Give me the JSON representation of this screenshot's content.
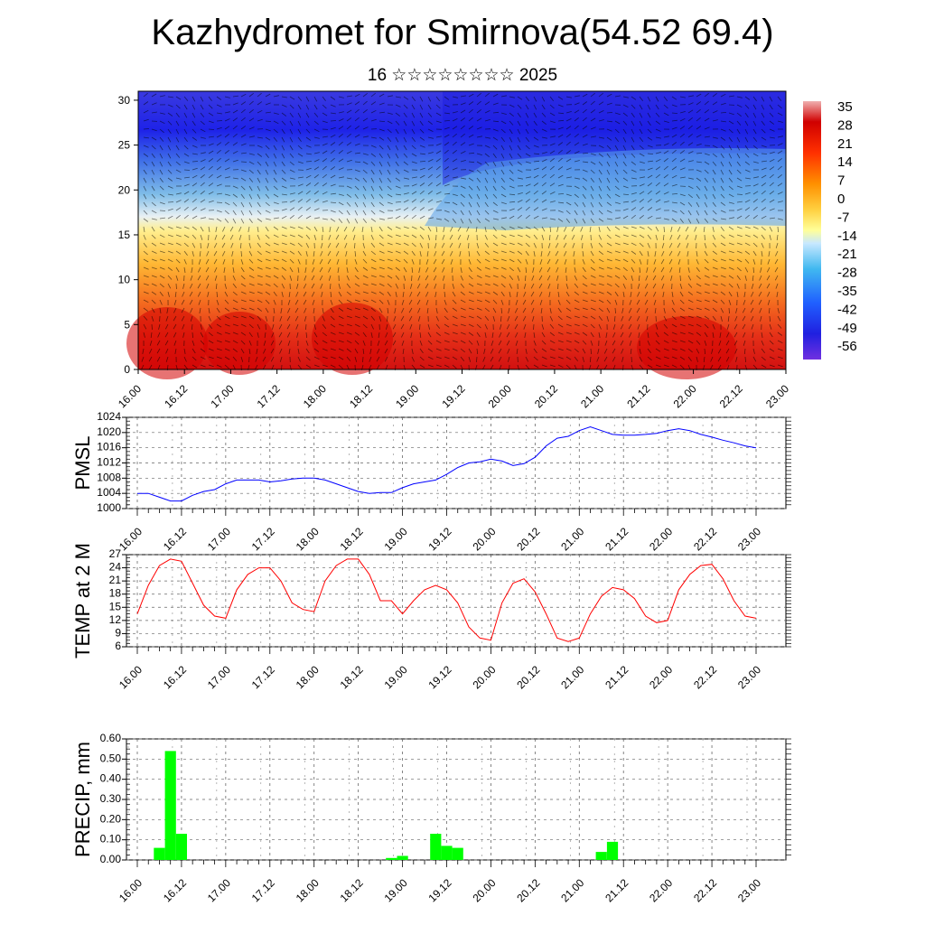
{
  "title": "Kazhydromet for Smirnova(54.52 69.4)",
  "subtitle": "16 ☆☆☆☆☆☆☆☆ 2025",
  "time_labels": [
    "16.00",
    "16.12",
    "17.00",
    "17.12",
    "18.00",
    "18.12",
    "19.00",
    "19.12",
    "20.00",
    "20.12",
    "21.00",
    "21.12",
    "22.00",
    "22.12",
    "23.00"
  ],
  "chart_data": [
    {
      "type": "heatmap",
      "name": "Cross-section",
      "yticks": [
        0,
        5,
        10,
        15,
        20,
        25,
        30
      ],
      "ylim": [
        0,
        31
      ],
      "colorbar": {
        "labels": [
          "35",
          "28",
          "21",
          "14",
          "7",
          "0",
          "-7",
          "-14",
          "-21",
          "-28",
          "-35",
          "-42",
          "-49",
          "-56"
        ]
      }
    },
    {
      "type": "line",
      "ylabel": "PMSL",
      "ylim": [
        1000,
        1024
      ],
      "yticks": [
        "1000",
        "1004",
        "1008",
        "1012",
        "1016",
        "1020",
        "1024"
      ],
      "color": "#0000ff",
      "values": [
        1004,
        1004,
        1003,
        1002,
        1002,
        1003.5,
        1004.5,
        1005,
        1006.5,
        1007.5,
        1007.5,
        1007.5,
        1007,
        1007.3,
        1007.8,
        1008,
        1008,
        1007.5,
        1006.5,
        1005.5,
        1004.5,
        1004,
        1004.2,
        1004.2,
        1005.5,
        1006.5,
        1007,
        1007.5,
        1009,
        1010.8,
        1012,
        1012.3,
        1013,
        1012.5,
        1011.3,
        1011.8,
        1013.5,
        1016.5,
        1018.5,
        1019,
        1020.5,
        1021.5,
        1020.5,
        1019.5,
        1019.3,
        1019.3,
        1019.5,
        1019.8,
        1020.5,
        1021,
        1020.5,
        1019.5,
        1018.8,
        1018,
        1017.3,
        1016.5,
        1016
      ]
    },
    {
      "type": "line",
      "ylabel": "TEMP at 2 M",
      "ylim": [
        6,
        27
      ],
      "yticks": [
        "6",
        "9",
        "12",
        "15",
        "18",
        "21",
        "24",
        "27"
      ],
      "color": "#ff0000",
      "values": [
        13.5,
        20,
        24.5,
        26,
        25.5,
        20.5,
        15.5,
        13,
        12.5,
        19,
        22.5,
        24,
        24,
        21,
        16,
        14.5,
        14,
        21,
        24.5,
        26,
        26,
        22.5,
        16.5,
        16.5,
        13.5,
        16.5,
        19,
        20,
        19,
        16,
        10.5,
        8,
        7.5,
        16,
        20.5,
        21.5,
        18.5,
        13.5,
        8,
        7.2,
        8,
        13.5,
        17.5,
        19.5,
        19,
        17,
        13,
        11.5,
        12,
        19,
        22.5,
        24.5,
        24.8,
        21.5,
        16.5,
        13,
        12.5
      ]
    },
    {
      "type": "bar",
      "ylabel": "PRECIP, mm",
      "ylim": [
        0,
        0.6
      ],
      "yticks": [
        "0.00",
        "0.10",
        "0.20",
        "0.30",
        "0.40",
        "0.50",
        "0.60"
      ],
      "color": "#00ff00",
      "values": [
        0,
        0,
        0.06,
        0.54,
        0.13,
        0,
        0,
        0,
        0,
        0,
        0,
        0,
        0,
        0,
        0,
        0,
        0,
        0,
        0,
        0,
        0,
        0,
        0,
        0.01,
        0.02,
        0,
        0,
        0.13,
        0.07,
        0.06,
        0,
        0,
        0,
        0,
        0,
        0,
        0,
        0,
        0,
        0,
        0,
        0,
        0.04,
        0.09,
        0,
        0,
        0,
        0,
        0,
        0,
        0,
        0,
        0,
        0,
        0,
        0,
        0
      ]
    }
  ]
}
